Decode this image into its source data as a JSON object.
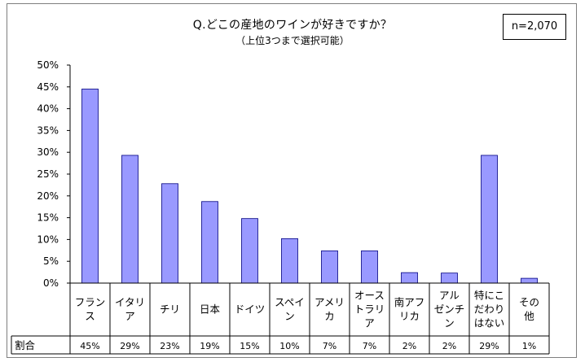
{
  "n_label": "n=2,070",
  "chart_data": {
    "type": "bar",
    "title": "Q.どこの産地のワインが好きですか？",
    "subtitle": "（上位3つまで選択可能）",
    "categories": [
      [
        "フラン",
        "ス"
      ],
      [
        "イタリ",
        "ア"
      ],
      [
        "チリ"
      ],
      [
        "日本"
      ],
      [
        "ドイツ"
      ],
      [
        "スペイ",
        "ン"
      ],
      [
        "アメリ",
        "カ"
      ],
      [
        "オース",
        "トラリ",
        "ア"
      ],
      [
        "南アフ",
        "リカ"
      ],
      [
        "アル",
        "ゼンチ",
        "ン"
      ],
      [
        "特にこ",
        "だわり",
        "はない"
      ],
      [
        "その",
        "他"
      ]
    ],
    "values": [
      44.5,
      29.3,
      22.8,
      18.7,
      14.8,
      10.2,
      7.4,
      7.4,
      2.4,
      2.3,
      29.3,
      1.1
    ],
    "ylim": [
      0,
      50
    ],
    "yticks": [
      "0%",
      "5%",
      "10%",
      "15%",
      "20%",
      "25%",
      "30%",
      "35%",
      "40%",
      "45%",
      "50%"
    ],
    "bar_color": "#9999ff",
    "bar_edge_color": "#000080",
    "table_row_label": "割合",
    "share_labels": [
      "45%",
      "29%",
      "23%",
      "19%",
      "15%",
      "10%",
      "7%",
      "7%",
      "2%",
      "2%",
      "29%",
      "1%"
    ]
  }
}
